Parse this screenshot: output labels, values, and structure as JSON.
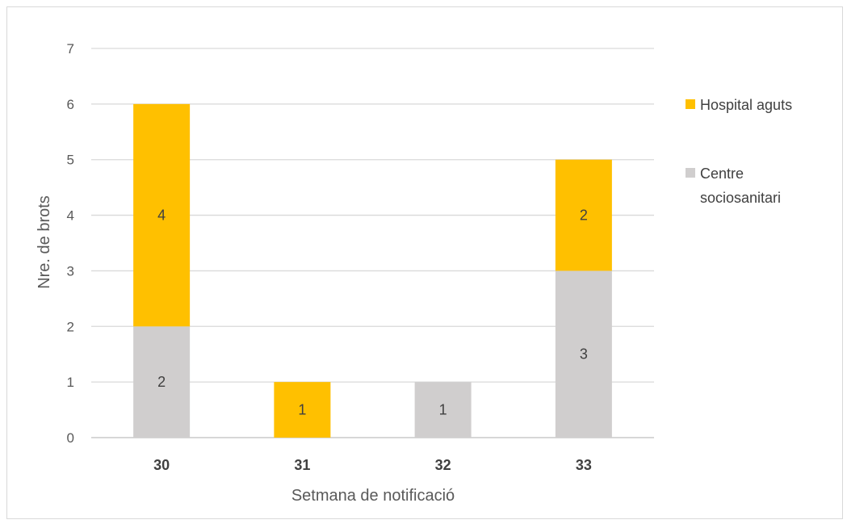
{
  "chart_data": {
    "type": "bar",
    "stacked": true,
    "categories": [
      "30",
      "31",
      "32",
      "33"
    ],
    "series": [
      {
        "name": "Centre sociosanitari",
        "values": [
          2,
          0,
          1,
          3
        ],
        "color": "#d0cece"
      },
      {
        "name": "Hospital aguts",
        "values": [
          4,
          1,
          0,
          2
        ],
        "color": "#ffc000"
      }
    ],
    "xlabel": "Setmana de notificació",
    "ylabel": "Nre. de brots",
    "ylim": [
      0,
      7
    ],
    "yticks": [
      0,
      1,
      2,
      3,
      4,
      5,
      6,
      7
    ],
    "grid": true,
    "legend": {
      "position": "right",
      "entries": [
        {
          "series": "Hospital aguts",
          "lines": [
            "Hospital aguts"
          ],
          "color": "#ffc000"
        },
        {
          "series": "Centre sociosanitari",
          "lines": [
            "Centre",
            "sociosanitari"
          ],
          "color": "#d0cece"
        }
      ]
    },
    "colors": {
      "gridline": "#d9d9d9",
      "axis": "#bfbfbf"
    }
  }
}
